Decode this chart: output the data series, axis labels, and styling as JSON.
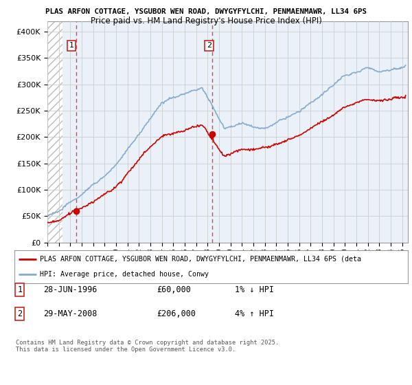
{
  "title_line1": "PLAS ARFON COTTAGE, YSGUBOR WEN ROAD, DWYGYFYLCHI, PENMAENMAWR, LL34 6PS",
  "title_line2": "Price paid vs. HM Land Registry's House Price Index (HPI)",
  "ylim": [
    0,
    420000
  ],
  "yticks": [
    0,
    50000,
    100000,
    150000,
    200000,
    250000,
    300000,
    350000,
    400000
  ],
  "ytick_labels": [
    "£0",
    "£50K",
    "£100K",
    "£150K",
    "£200K",
    "£250K",
    "£300K",
    "£350K",
    "£400K"
  ],
  "xlim_start": 1994.0,
  "xlim_end": 2025.5,
  "sale1_year": 1996.49,
  "sale1_price": 60000,
  "sale1_label": "1",
  "sale2_year": 2008.41,
  "sale2_price": 206000,
  "sale2_label": "2",
  "line_color_property": "#cc0000",
  "line_color_hpi": "#88aacc",
  "dashed_line_color": "#dd4444",
  "marker_color": "#cc0000",
  "grid_color": "#cccccc",
  "bg_color": "#ffffff",
  "legend_label_property": "PLAS ARFON COTTAGE, YSGUBOR WEN ROAD, DWYGYFYLCHI, PENMAENMAWR, LL34 6PS (deta",
  "legend_label_hpi": "HPI: Average price, detached house, Conwy",
  "footer": "Contains HM Land Registry data © Crown copyright and database right 2025.\nThis data is licensed under the Open Government Licence v3.0.",
  "table_row1": [
    "1",
    "28-JUN-1996",
    "£60,000",
    "1% ↓ HPI"
  ],
  "table_row2": [
    "2",
    "29-MAY-2008",
    "£206,000",
    "4% ↑ HPI"
  ]
}
